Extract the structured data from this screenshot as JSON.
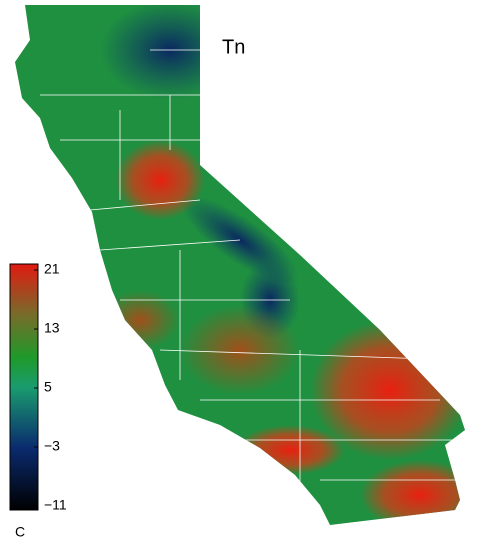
{
  "map": {
    "title": "Tn",
    "colorbar": {
      "range": [
        -11,
        21
      ],
      "ticks": [
        21,
        13,
        5,
        {
          "value": -3,
          "label": "−3"
        },
        {
          "value": -11,
          "label": "−11"
        }
      ],
      "unit": "C"
    }
  }
}
